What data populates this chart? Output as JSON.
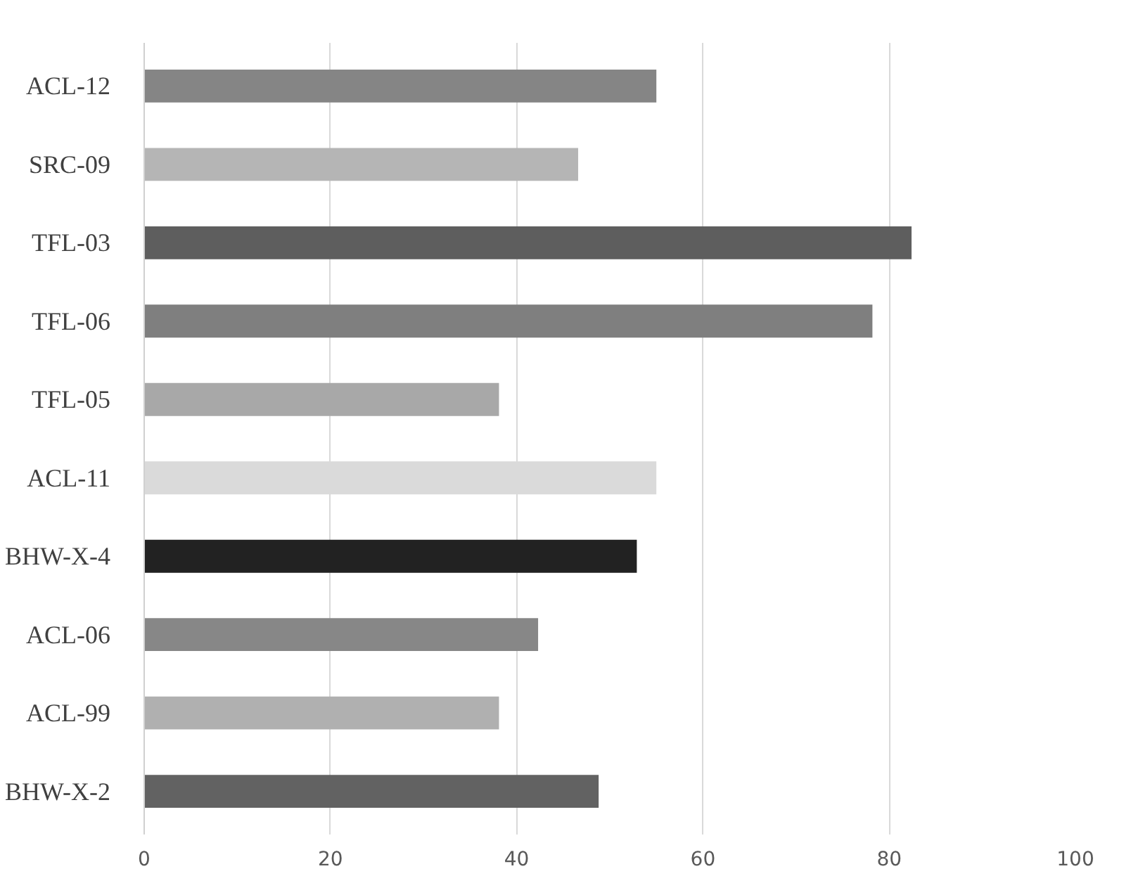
{
  "chart_data": {
    "type": "bar",
    "orientation": "horizontal",
    "categories": [
      "ACL-12",
      "SRC-09",
      "TFL-03",
      "TFL-06",
      "TFL-05",
      "ACL-11",
      "BHW-X-4",
      "ACL-06",
      "ACL-99",
      "BHW-X-2"
    ],
    "values": [
      55.0,
      46.6,
      82.4,
      78.2,
      38.1,
      55.0,
      52.9,
      42.3,
      38.1,
      48.8
    ],
    "colors": [
      "#858585",
      "#b5b5b5",
      "#5e5e5e",
      "#7f7f7f",
      "#a8a8a8",
      "#dadada",
      "#222222",
      "#878787",
      "#b0b0b0",
      "#626262"
    ],
    "xlim": [
      0,
      100
    ],
    "xticks": [
      0,
      20,
      40,
      60,
      80,
      100
    ],
    "grid": "x"
  }
}
